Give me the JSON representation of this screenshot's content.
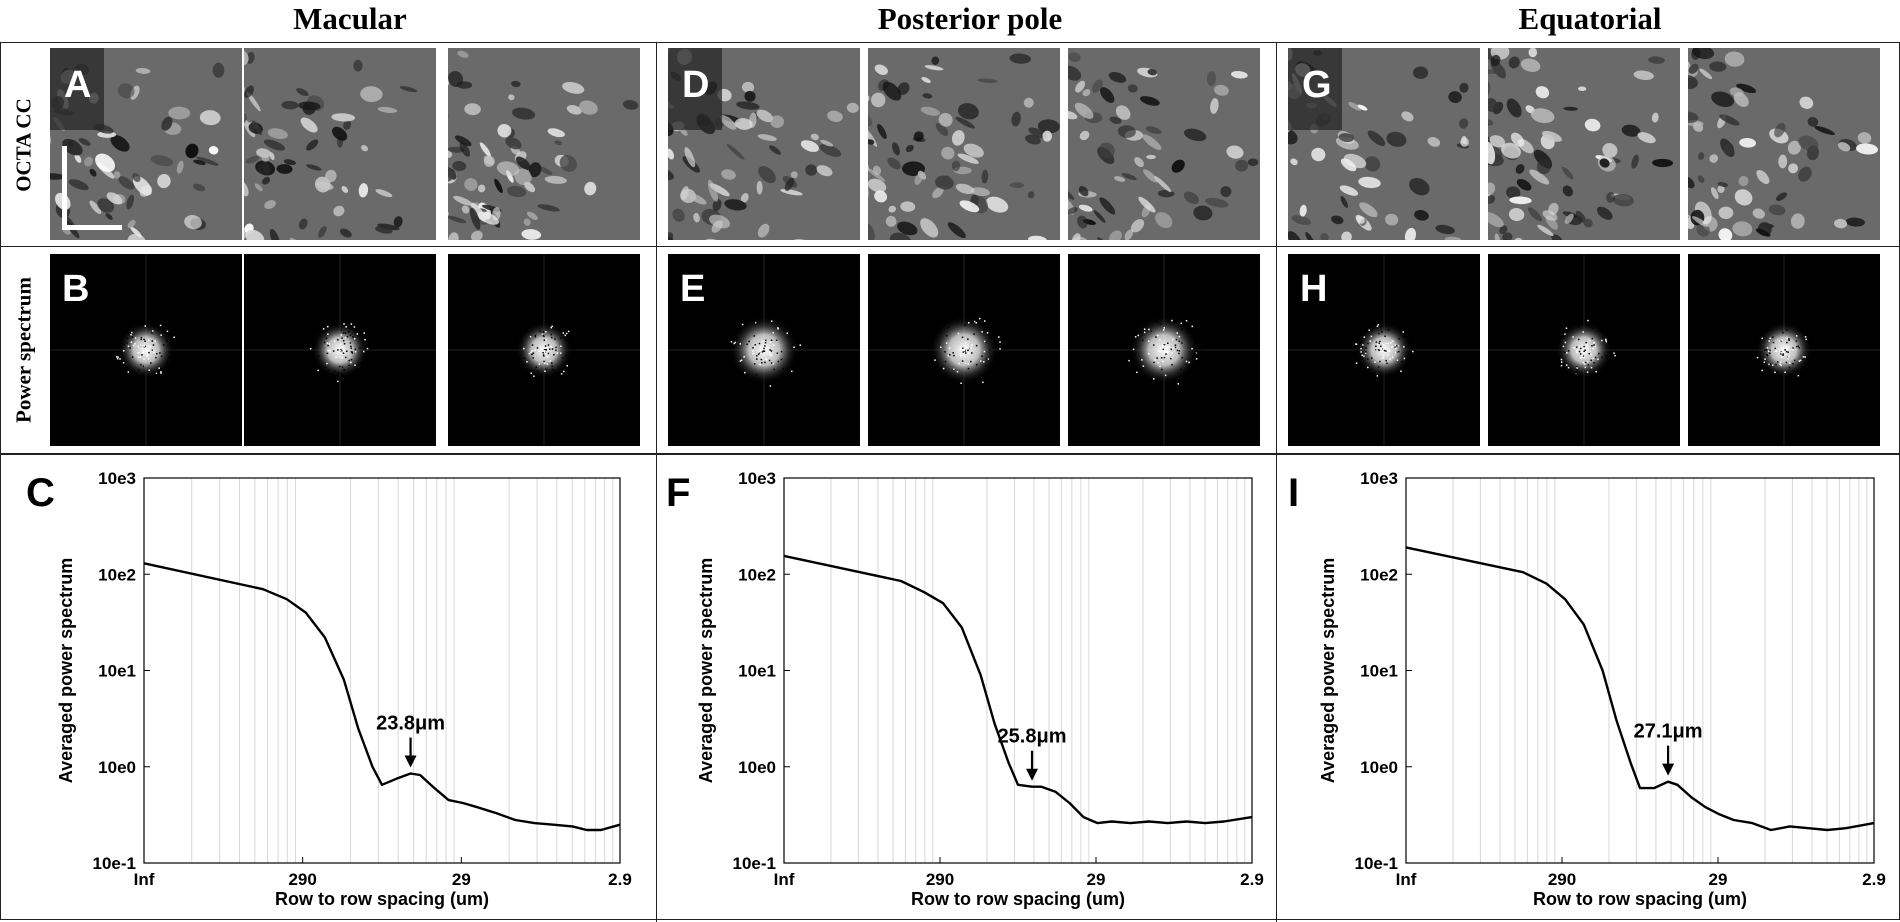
{
  "columns": [
    "Macular",
    "Posterior pole",
    "Equatorial"
  ],
  "row_labels": {
    "octa": "OCTA CC",
    "power": "Power spectrum"
  },
  "panel_letters": {
    "octa": [
      "A",
      "D",
      "G"
    ],
    "power": [
      "B",
      "E",
      "H"
    ],
    "chart": [
      "C",
      "F",
      "I"
    ]
  },
  "chart_data": [
    {
      "type": "line",
      "panel": "C",
      "xlabel": "Row to row spacing (um)",
      "ylabel": "Averaged power spectrum",
      "x_ticks": [
        "Inf",
        "290",
        "29",
        "2.9"
      ],
      "y_ticks": [
        "10e-1",
        "10e0",
        "10e1",
        "10e2",
        "10e3"
      ],
      "y_scale": "log",
      "ylim": [
        0.1,
        1000
      ],
      "grid": "x-minor",
      "annotation": "23.8μm",
      "series": [
        {
          "x": [
            0,
            0.25,
            0.3,
            0.34,
            0.38,
            0.42,
            0.45,
            0.48,
            0.5,
            0.53,
            0.56,
            0.58,
            0.61,
            0.64,
            0.67,
            0.7,
            0.74,
            0.78,
            0.82,
            0.86,
            0.9,
            0.93,
            0.96,
            1.0
          ],
          "y": [
            130,
            70,
            55,
            40,
            22,
            8,
            2.5,
            1.0,
            0.65,
            0.75,
            0.85,
            0.82,
            0.6,
            0.45,
            0.42,
            0.38,
            0.33,
            0.28,
            0.26,
            0.25,
            0.24,
            0.22,
            0.22,
            0.25
          ]
        }
      ]
    },
    {
      "type": "line",
      "panel": "F",
      "xlabel": "Row to row spacing (um)",
      "ylabel": "Averaged power spectrum",
      "x_ticks": [
        "Inf",
        "290",
        "29",
        "2.9"
      ],
      "y_ticks": [
        "10e-1",
        "10e0",
        "10e1",
        "10e2",
        "10e3"
      ],
      "y_scale": "log",
      "ylim": [
        0.1,
        1000
      ],
      "grid": "x-minor",
      "annotation": "25.8μm",
      "series": [
        {
          "x": [
            0,
            0.25,
            0.3,
            0.34,
            0.38,
            0.42,
            0.45,
            0.48,
            0.5,
            0.53,
            0.55,
            0.58,
            0.61,
            0.64,
            0.67,
            0.7,
            0.74,
            0.78,
            0.82,
            0.86,
            0.9,
            0.94,
            1.0
          ],
          "y": [
            155,
            85,
            65,
            50,
            28,
            9,
            2.8,
            1.1,
            0.65,
            0.62,
            0.62,
            0.55,
            0.42,
            0.3,
            0.26,
            0.27,
            0.26,
            0.27,
            0.26,
            0.27,
            0.26,
            0.27,
            0.3
          ]
        }
      ]
    },
    {
      "type": "line",
      "panel": "I",
      "xlabel": "Row to row spacing (um)",
      "ylabel": "Averaged power spectrum",
      "x_ticks": [
        "Inf",
        "290",
        "29",
        "2.9"
      ],
      "y_ticks": [
        "10e-1",
        "10e0",
        "10e1",
        "10e2",
        "10e3"
      ],
      "y_scale": "log",
      "ylim": [
        0.1,
        1000
      ],
      "grid": "x-minor",
      "annotation": "27.1μm",
      "series": [
        {
          "x": [
            0,
            0.25,
            0.3,
            0.34,
            0.38,
            0.42,
            0.45,
            0.48,
            0.5,
            0.53,
            0.56,
            0.58,
            0.61,
            0.64,
            0.67,
            0.7,
            0.74,
            0.78,
            0.82,
            0.86,
            0.9,
            0.94,
            1.0
          ],
          "y": [
            190,
            105,
            80,
            55,
            30,
            10,
            3.0,
            1.1,
            0.6,
            0.6,
            0.7,
            0.65,
            0.48,
            0.38,
            0.32,
            0.28,
            0.26,
            0.22,
            0.24,
            0.23,
            0.22,
            0.23,
            0.26
          ]
        }
      ]
    }
  ]
}
